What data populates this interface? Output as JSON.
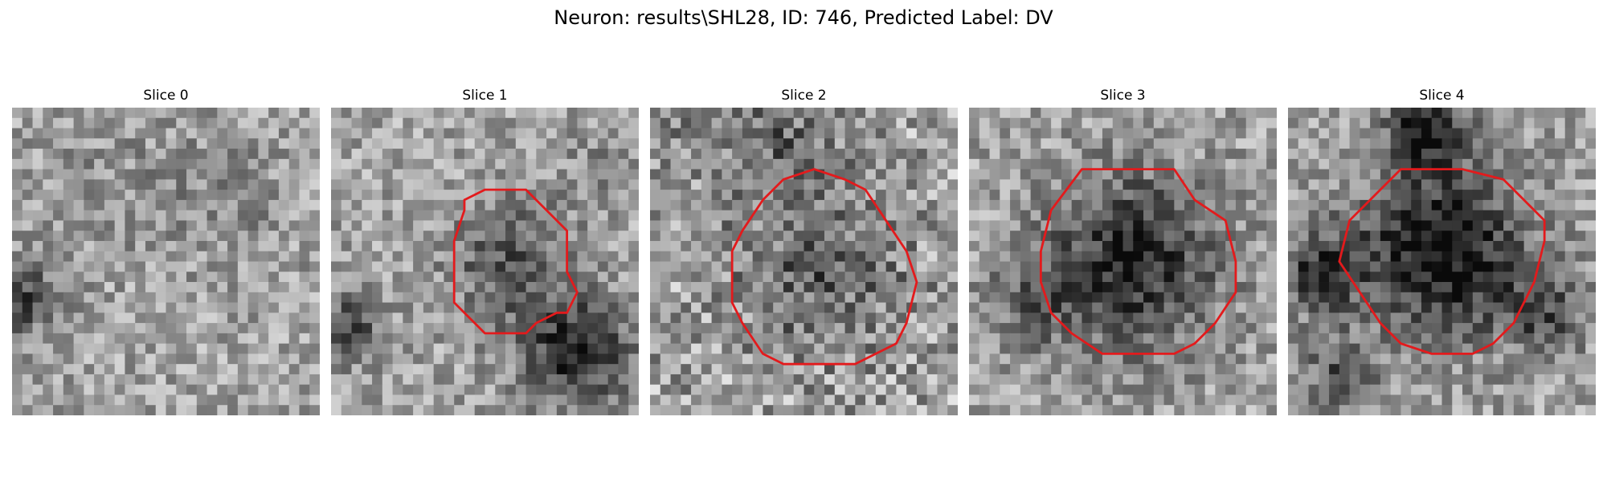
{
  "figure": {
    "title": "Neuron: results\\SHL28, ID: 746, Predicted Label: DV"
  },
  "grid_size": 30,
  "colors": {
    "contour": "#e31a1c",
    "background": "#ffffff"
  },
  "slices": [
    {
      "title": "Slice 0",
      "has_contour": false
    },
    {
      "title": "Slice 1",
      "has_contour": true,
      "contour": [
        [
          13,
          9
        ],
        [
          15,
          8
        ],
        [
          19,
          8
        ],
        [
          21,
          10
        ],
        [
          23,
          12
        ],
        [
          23,
          16
        ],
        [
          24,
          18
        ],
        [
          23,
          20
        ],
        [
          22,
          20
        ],
        [
          20,
          21
        ],
        [
          19,
          22
        ],
        [
          15,
          22
        ],
        [
          13,
          20
        ],
        [
          12,
          19
        ],
        [
          12,
          13
        ],
        [
          13,
          10
        ]
      ]
    },
    {
      "title": "Slice 2",
      "has_contour": true,
      "contour": [
        [
          13,
          7
        ],
        [
          16,
          6
        ],
        [
          19,
          7
        ],
        [
          21,
          8
        ],
        [
          23,
          11
        ],
        [
          25,
          14
        ],
        [
          26,
          17
        ],
        [
          25,
          21
        ],
        [
          24,
          23
        ],
        [
          22,
          24
        ],
        [
          20,
          25
        ],
        [
          17,
          25
        ],
        [
          13,
          25
        ],
        [
          11,
          24
        ],
        [
          9,
          21
        ],
        [
          8,
          19
        ],
        [
          8,
          14
        ],
        [
          9,
          12
        ],
        [
          11,
          9
        ]
      ]
    },
    {
      "title": "Slice 3",
      "has_contour": true,
      "contour": [
        [
          11,
          6
        ],
        [
          16,
          6
        ],
        [
          20,
          6
        ],
        [
          22,
          9
        ],
        [
          25,
          11
        ],
        [
          26,
          15
        ],
        [
          26,
          18
        ],
        [
          24,
          21
        ],
        [
          22,
          23
        ],
        [
          20,
          24
        ],
        [
          17,
          24
        ],
        [
          13,
          24
        ],
        [
          10,
          22
        ],
        [
          8,
          20
        ],
        [
          7,
          17
        ],
        [
          7,
          14
        ],
        [
          8,
          10
        ]
      ]
    },
    {
      "title": "Slice 4",
      "has_contour": true,
      "contour": [
        [
          11,
          6
        ],
        [
          14,
          6
        ],
        [
          17,
          6
        ],
        [
          21,
          7
        ],
        [
          23,
          9
        ],
        [
          25,
          11
        ],
        [
          25,
          13
        ],
        [
          24,
          17
        ],
        [
          22,
          21
        ],
        [
          20,
          23
        ],
        [
          18,
          24
        ],
        [
          14,
          24
        ],
        [
          11,
          23
        ],
        [
          9,
          21
        ],
        [
          7,
          18
        ],
        [
          5,
          15
        ],
        [
          6,
          11
        ],
        [
          9,
          8
        ]
      ]
    }
  ]
}
